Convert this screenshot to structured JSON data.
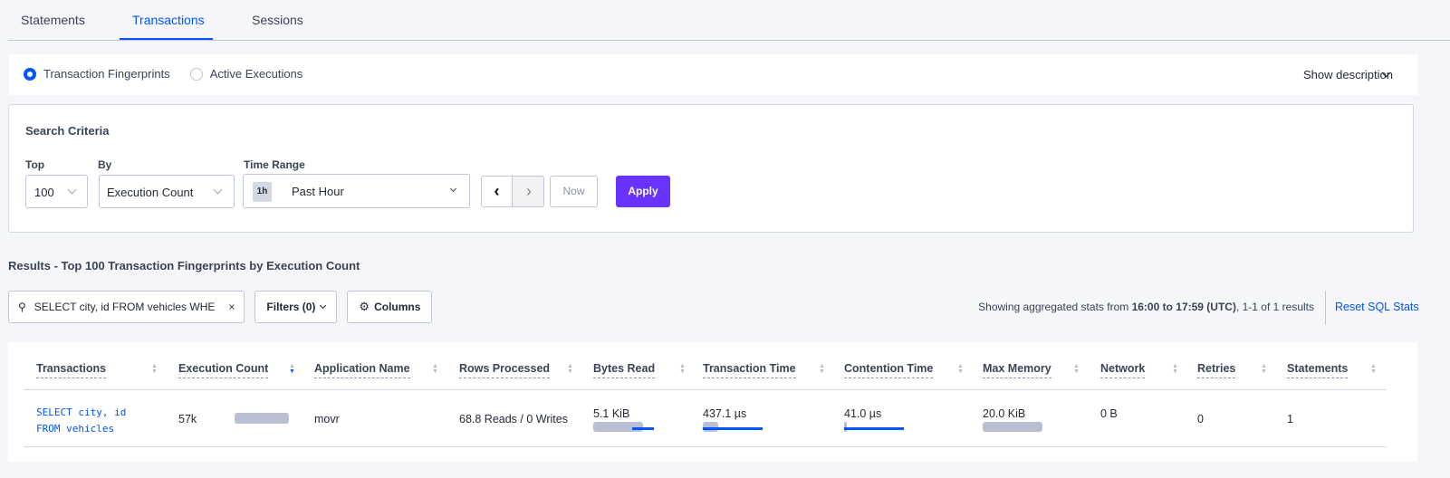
{
  "tabs": [
    {
      "label": "Statements"
    },
    {
      "label": "Transactions"
    },
    {
      "label": "Sessions"
    }
  ],
  "view": {
    "options": [
      {
        "label": "Transaction Fingerprints",
        "selected": true
      },
      {
        "label": "Active Executions",
        "selected": false
      }
    ],
    "show_description": "Show description"
  },
  "search": {
    "title": "Search Criteria",
    "top_label": "Top",
    "top_value": "100",
    "by_label": "By",
    "by_value": "Execution Count",
    "time_label": "Time Range",
    "time_badge": "1h",
    "time_value": "Past Hour",
    "now": "Now",
    "apply": "Apply"
  },
  "results": {
    "title": "Results - Top 100 Transaction Fingerprints by Execution Count",
    "search_value": "SELECT city, id FROM vehicles WHE",
    "filters": "Filters (0)",
    "columns": "Columns",
    "summary_prefix": "Showing aggregated stats from ",
    "summary_range": "16:00 to 17:59 (UTC)",
    "summary_suffix": ", 1-1 of 1 results",
    "reset": "Reset SQL Stats"
  },
  "table": {
    "headers": [
      "Transactions",
      "Execution Count",
      "Application Name",
      "Rows Processed",
      "Bytes Read",
      "Transaction Time",
      "Contention Time",
      "Max Memory",
      "Network",
      "Retries",
      "Statements"
    ],
    "sorted_column": "Execution Count",
    "rows": [
      {
        "txn_line1": "SELECT city, id",
        "txn_line2": "FROM vehicles",
        "exec": "57k",
        "app": "movr",
        "rows": "68.8 Reads / 0 Writes",
        "bytes": "5.1 KiB",
        "txn_time": "437.1 µs",
        "contention": "41.0 µs",
        "max_mem": "20.0 KiB",
        "network": "0 B",
        "retries": "0",
        "statements": "1"
      }
    ]
  },
  "colors": {
    "accent": "#0055ff",
    "apply": "#6933ff",
    "bar": "#b8bfd3"
  }
}
